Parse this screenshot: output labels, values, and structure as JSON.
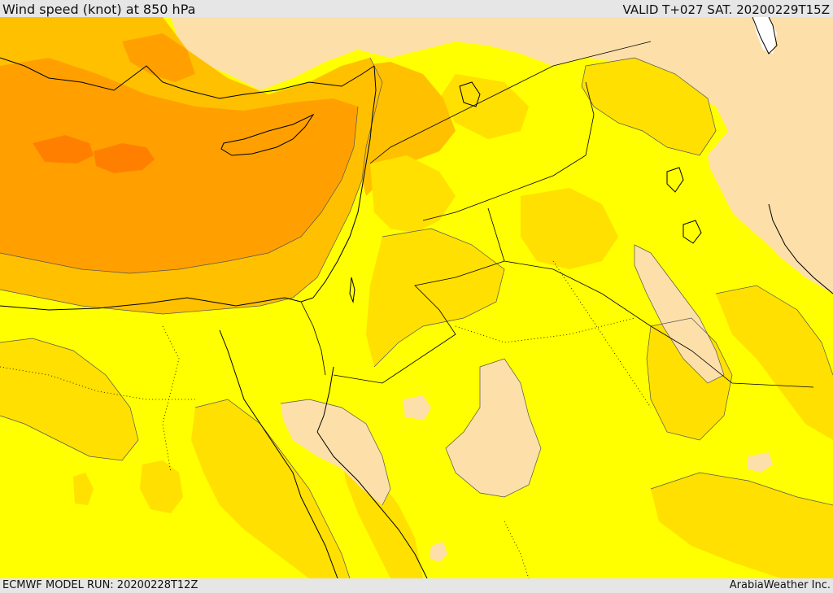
{
  "header": {
    "title": "Wind speed (knot) at 850 hPa",
    "valid": "VALID T+027 SAT. 20200229T15Z"
  },
  "footer": {
    "model_run": "ECMWF MODEL RUN: 20200228T12Z",
    "credit": "ArabiaWeather Inc."
  },
  "palette": {
    "calm_white": "#ffffff",
    "light_wheat": "#fde0a9",
    "yellow": "#ffff00",
    "gold": "#ffe000",
    "amber": "#ffc000",
    "orange": "#ffa000",
    "dark_orange": "#ff8000",
    "coastline": "#000000"
  }
}
